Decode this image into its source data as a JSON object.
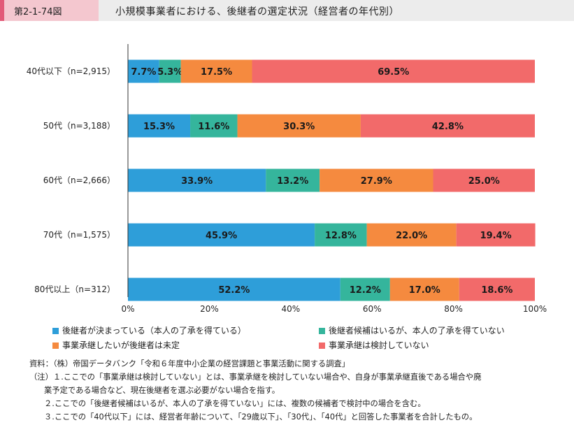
{
  "header": {
    "figure_number": "第2-1-74図",
    "title": "小規模事業者における、後継者の選定状況（経営者の年代別）"
  },
  "chart_data": {
    "type": "bar",
    "orientation": "horizontal",
    "stacked": true,
    "percent": true,
    "categories": [
      "40代以下（n=2,915）",
      "50代（n=3,188）",
      "60代（n=2,666）",
      "70代（n=1,575）",
      "80代以上（n=312）"
    ],
    "series": [
      {
        "name": "後継者が決まっている（本人の了承を得ている）",
        "color": "#2e9ed9",
        "values": [
          7.7,
          15.3,
          33.9,
          45.9,
          52.2
        ]
      },
      {
        "name": "後継者候補はいるが、本人の了承を得ていない",
        "color": "#35b59c",
        "values": [
          5.3,
          11.6,
          13.2,
          12.8,
          12.2
        ]
      },
      {
        "name": "事業承継したいが後継者は未定",
        "color": "#f58a3f",
        "values": [
          17.5,
          30.3,
          27.9,
          22.0,
          17.0
        ]
      },
      {
        "name": "事業承継は検討していない",
        "color": "#f26a6a",
        "values": [
          69.5,
          42.8,
          25.0,
          19.4,
          18.6
        ]
      }
    ],
    "data_labels": [
      [
        "7.7%",
        "15.3%",
        "33.9%",
        "45.9%",
        "52.2%"
      ],
      [
        "5.3%",
        "11.6%",
        "13.2%",
        "12.8%",
        "12.2%"
      ],
      [
        "17.5%",
        "30.3%",
        "27.9%",
        "22.0%",
        "17.0%"
      ],
      [
        "69.5%",
        "42.8%",
        "25.0%",
        "19.4%",
        "18.6%"
      ]
    ],
    "xlim": [
      0,
      100
    ],
    "xticks": [
      "0%",
      "20%",
      "40%",
      "60%",
      "80%",
      "100%"
    ],
    "grid": false,
    "legend_position": "bottom"
  },
  "notes": {
    "source": "資料：（株）帝国データバンク「令和６年度中小企業の経営課題と事業活動に関する調査」",
    "note1a": "（注）１.ここでの「事業承継は検討していない」とは、事業承継を検討していない場合や、自身が事業承継直後である場合や廃",
    "note1b": "業予定である場合など、現在後継者を選ぶ必要がない場合を指す。",
    "note2": "２.ここでの「後継者候補はいるが、本人の了承を得ていない」には、複数の候補者で検討中の場合を含む。",
    "note3": "３.ここでの「40代以下」には、経営者年齢について、「29歳以下」、「30代」、「40代」と回答した事業者を合計したもの。"
  }
}
